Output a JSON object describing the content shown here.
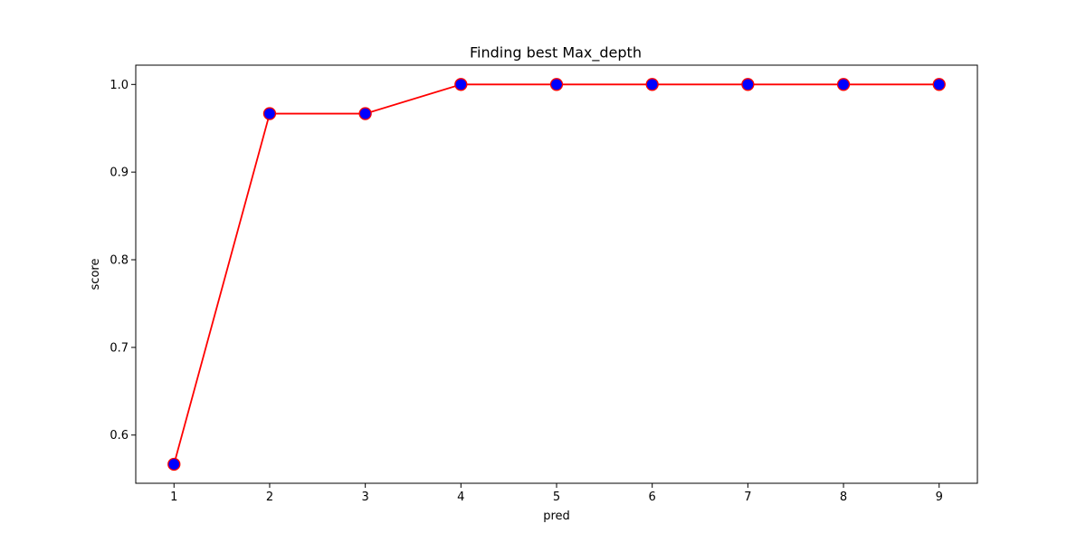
{
  "chart_data": {
    "type": "line",
    "title": "Finding best Max_depth",
    "xlabel": "pred",
    "ylabel": "score",
    "x": [
      1,
      2,
      3,
      4,
      5,
      6,
      7,
      8,
      9
    ],
    "series": [
      {
        "values": [
          0.5667,
          0.9667,
          0.9667,
          1.0,
          1.0,
          1.0,
          1.0,
          1.0,
          1.0
        ],
        "line_color": "#ff0000",
        "marker_face_color": "#0000ff",
        "marker_edge_color": "#ff0000"
      }
    ],
    "xlim": [
      0.6,
      9.4
    ],
    "ylim": [
      0.545,
      1.022
    ],
    "xticks": [
      "1",
      "2",
      "3",
      "4",
      "5",
      "6",
      "7",
      "8",
      "9"
    ],
    "yticks": [
      "0.6",
      "0.7",
      "0.8",
      "0.9",
      "1.0"
    ],
    "grid": false,
    "legend": "none"
  }
}
